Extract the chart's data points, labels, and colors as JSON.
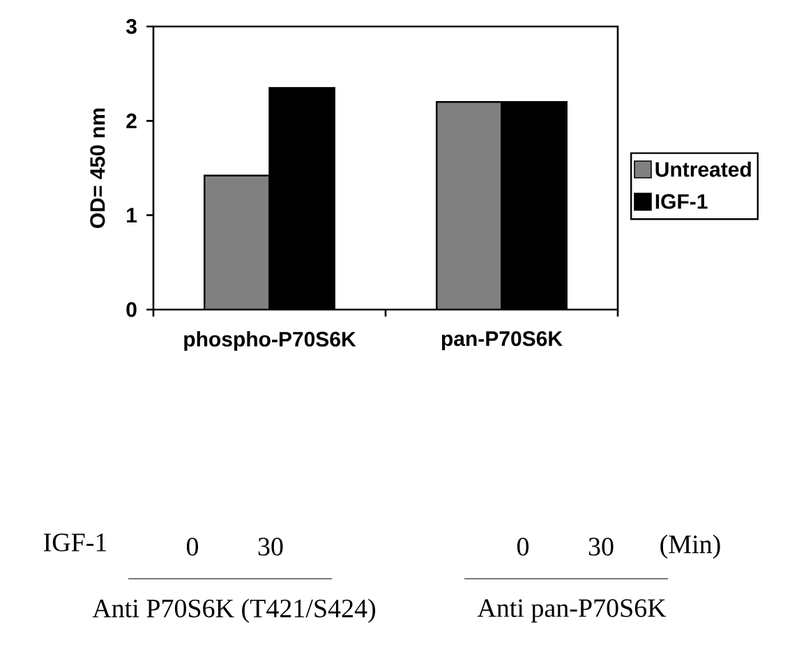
{
  "chart_data": {
    "type": "bar",
    "categories": [
      "phospho-P70S6K",
      "pan-P70S6K"
    ],
    "series": [
      {
        "name": "Untreated",
        "color": "#808080",
        "values": [
          1.42,
          2.2
        ]
      },
      {
        "name": "IGF-1",
        "color": "#000000",
        "values": [
          2.35,
          2.2
        ]
      }
    ],
    "ylabel": "OD= 450 nm",
    "ylim": [
      0,
      3
    ],
    "yticks": [
      0,
      1,
      2,
      3
    ],
    "legend": "right",
    "annotations": [
      "IGF-1",
      "0",
      "30",
      "0",
      "30",
      "(Min)",
      "Anti P70S6K (T421/S424)",
      "Anti pan-P70S6K"
    ]
  }
}
